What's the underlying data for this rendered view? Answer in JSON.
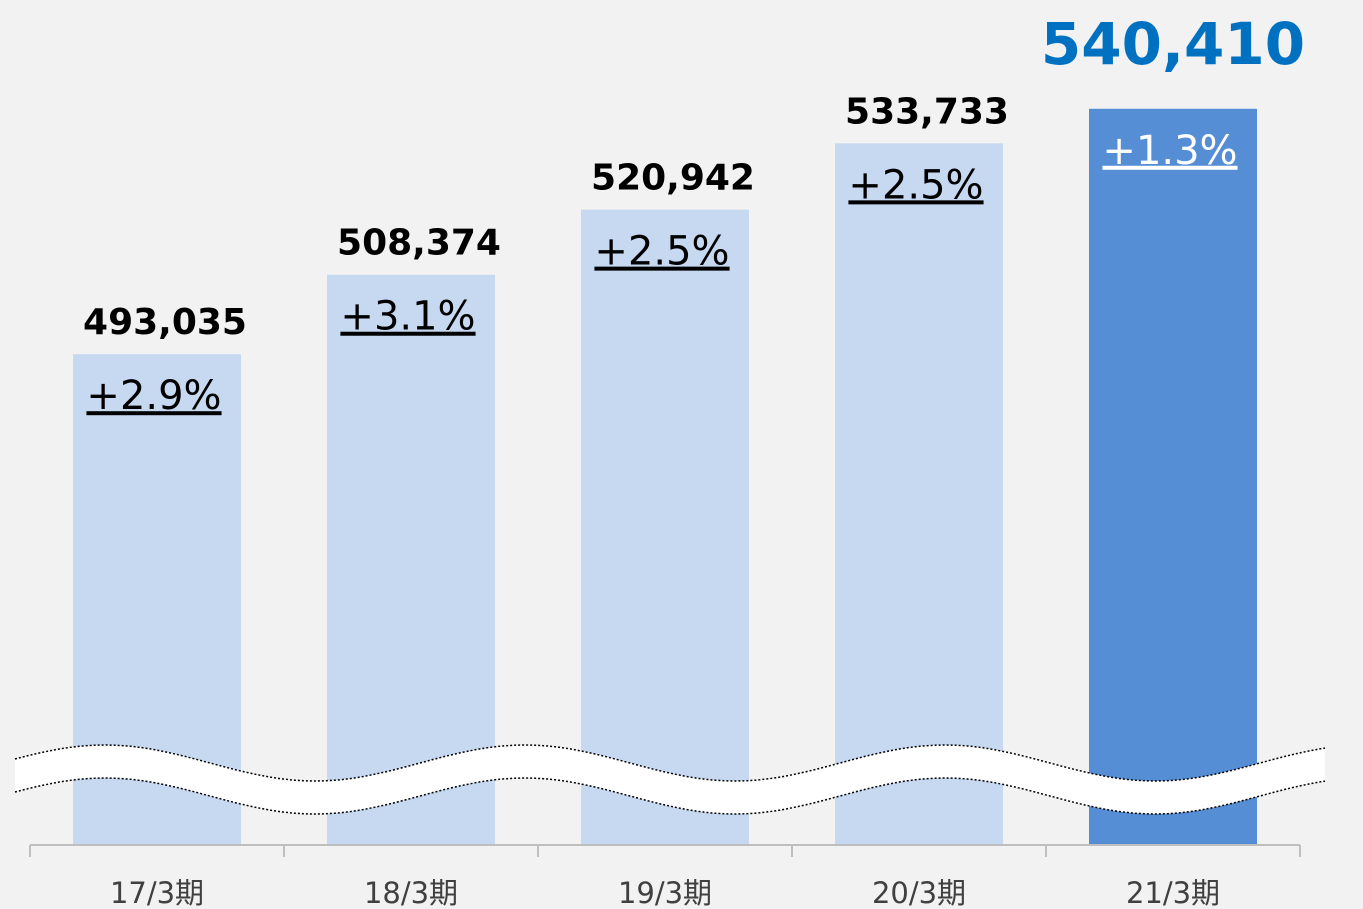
{
  "chart_data": {
    "type": "bar",
    "categories": [
      "17/3期",
      "18/3期",
      "19/3期",
      "20/3期",
      "21/3期"
    ],
    "values": [
      493035,
      508374,
      520942,
      533733,
      540410
    ],
    "value_labels": [
      "493,035",
      "508,374",
      "520,942",
      "533,733",
      "540,410"
    ],
    "annotations": [
      "+2.9%",
      "+3.1%",
      "+2.5%",
      "+2.5%",
      "+1.3%"
    ],
    "colors": [
      "#c6d9f1",
      "#c6d9f1",
      "#c6d9f1",
      "#c6d9f1",
      "#558ed5"
    ],
    "value_label_colors": [
      "#000000",
      "#000000",
      "#000000",
      "#000000",
      "#0070c0"
    ],
    "ylim": [
      398300,
      545000
    ]
  }
}
